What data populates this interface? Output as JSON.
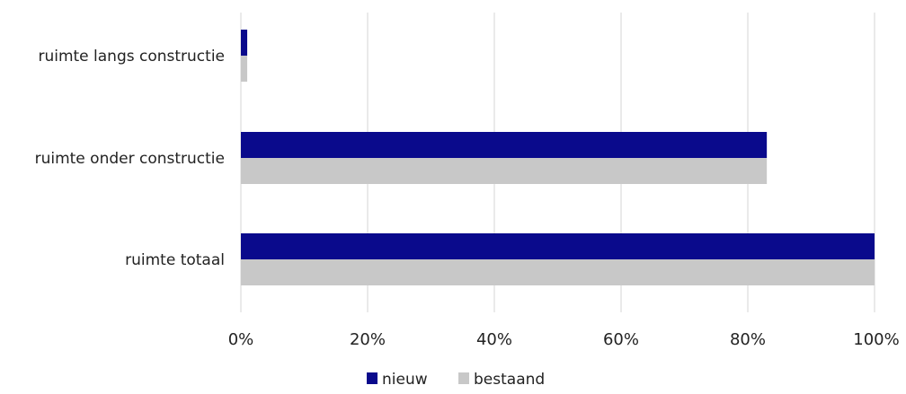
{
  "chart_data": {
    "type": "bar",
    "orientation": "horizontal",
    "categories": [
      "ruimte langs constructie",
      "ruimte onder constructie",
      "ruimte totaal"
    ],
    "series": [
      {
        "name": "nieuw",
        "values": [
          1,
          83,
          100
        ]
      },
      {
        "name": "bestaand",
        "values": [
          1,
          83,
          100
        ]
      }
    ],
    "x_ticks": [
      "0%",
      "20%",
      "40%",
      "60%",
      "80%",
      "100%"
    ],
    "xlim": [
      0,
      100
    ],
    "grid": "vertical",
    "legend_position": "bottom",
    "colors": {
      "nieuw": "#0a0a8c",
      "bestaand": "#c8c8c8"
    }
  }
}
